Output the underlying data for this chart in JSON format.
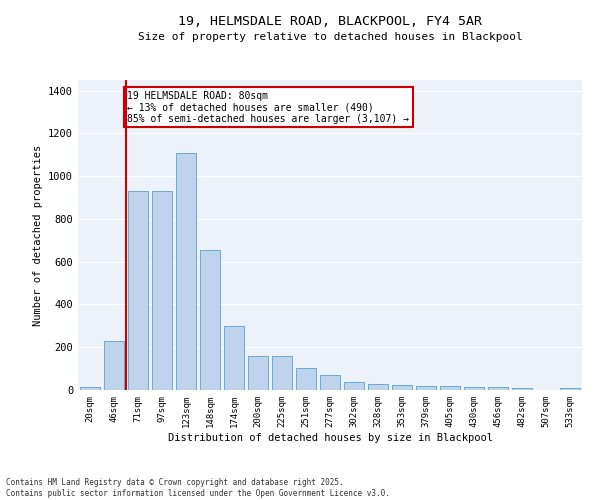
{
  "title_line1": "19, HELMSDALE ROAD, BLACKPOOL, FY4 5AR",
  "title_line2": "Size of property relative to detached houses in Blackpool",
  "xlabel": "Distribution of detached houses by size in Blackpool",
  "ylabel": "Number of detached properties",
  "categories": [
    "20sqm",
    "46sqm",
    "71sqm",
    "97sqm",
    "123sqm",
    "148sqm",
    "174sqm",
    "200sqm",
    "225sqm",
    "251sqm",
    "277sqm",
    "302sqm",
    "328sqm",
    "353sqm",
    "379sqm",
    "405sqm",
    "430sqm",
    "456sqm",
    "482sqm",
    "507sqm",
    "533sqm"
  ],
  "values": [
    15,
    230,
    930,
    930,
    1110,
    655,
    300,
    160,
    160,
    105,
    70,
    38,
    28,
    25,
    20,
    20,
    15,
    15,
    10,
    0,
    8
  ],
  "bar_color": "#bed3ec",
  "bar_edge_color": "#6aaad4",
  "bg_color": "#edf1f9",
  "grid_color": "#ffffff",
  "vline_color": "#cc0000",
  "vline_x": 1.5,
  "annotation_text": "19 HELMSDALE ROAD: 80sqm\n← 13% of detached houses are smaller (490)\n85% of semi-detached houses are larger (3,107) →",
  "annotation_box_color": "#ffffff",
  "annotation_box_edge": "#cc0000",
  "footnote": "Contains HM Land Registry data © Crown copyright and database right 2025.\nContains public sector information licensed under the Open Government Licence v3.0.",
  "ylim": [
    0,
    1450
  ],
  "yticks": [
    0,
    200,
    400,
    600,
    800,
    1000,
    1200,
    1400
  ]
}
